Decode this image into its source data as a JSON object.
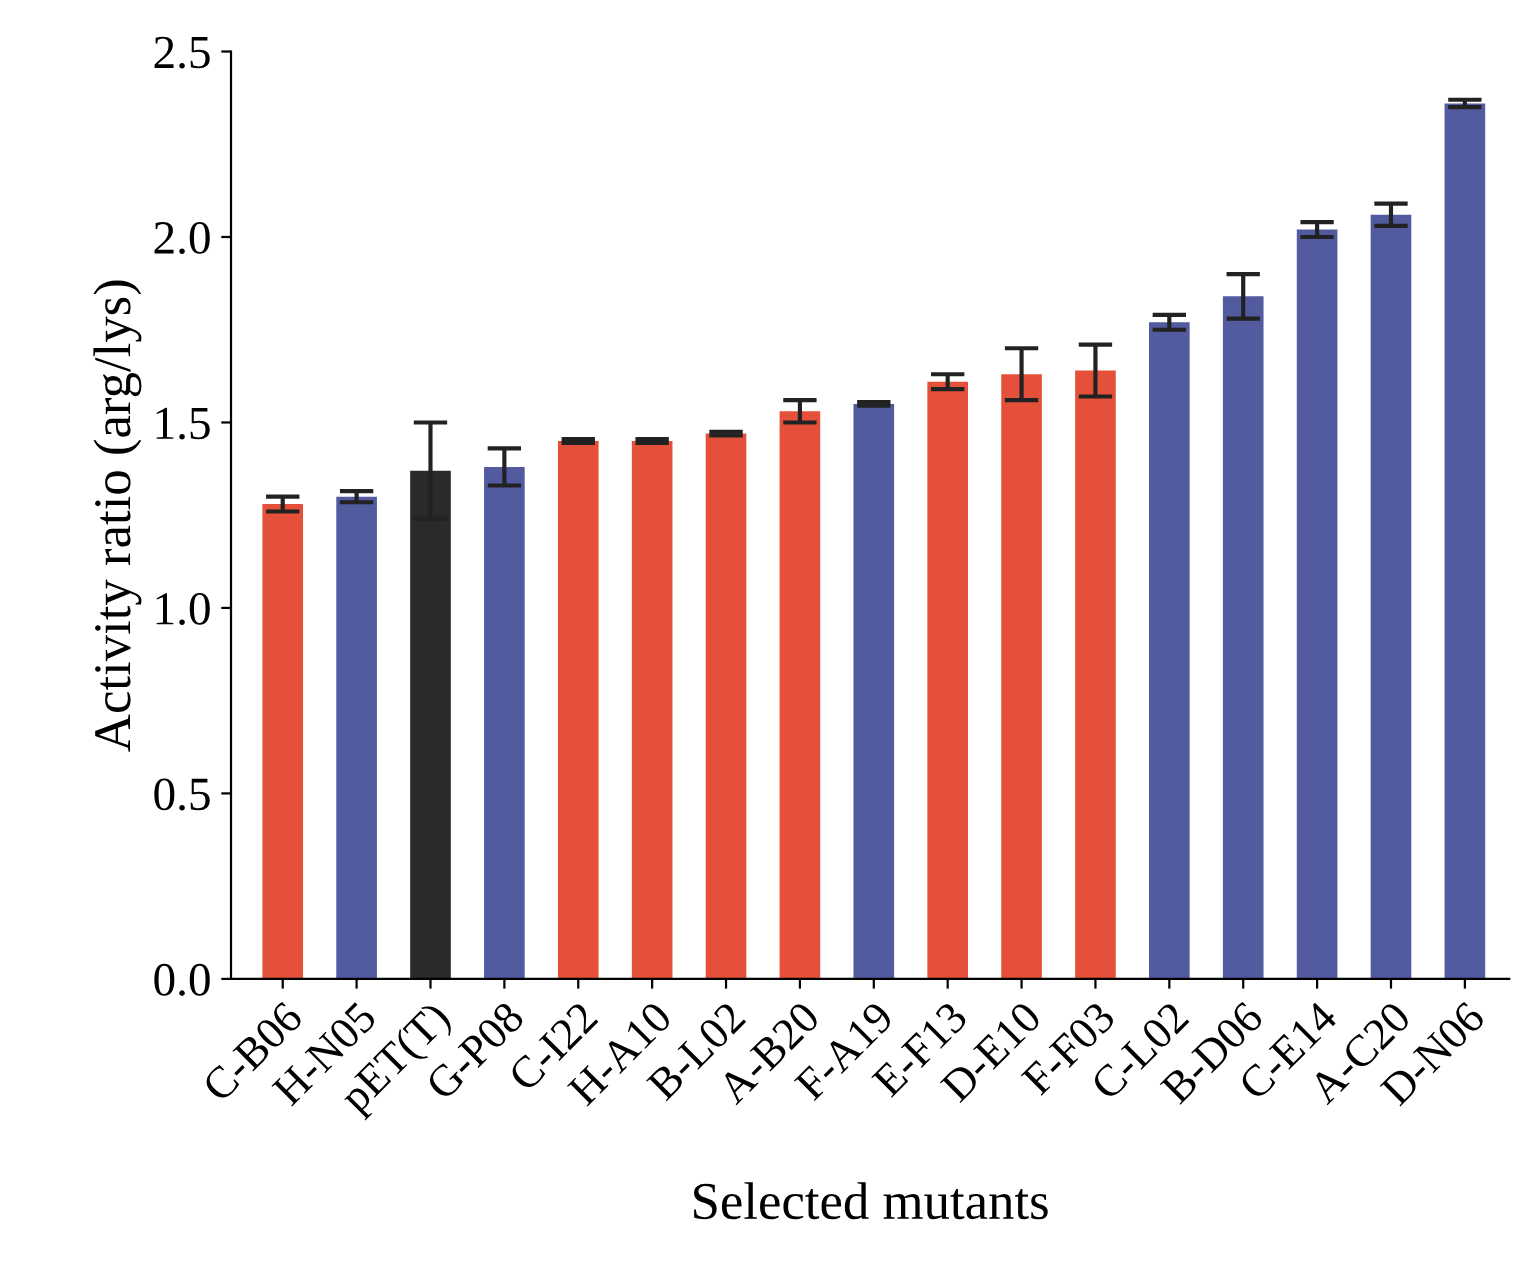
{
  "chart_data": {
    "type": "bar",
    "xlabel": "Selected mutants",
    "ylabel": "Activity ratio (arg/lys)",
    "categories": [
      "C-B06",
      "H-N05",
      "pET(T)",
      "G-P08",
      "C-I22",
      "H-A10",
      "B-L02",
      "A-B20",
      "F-A19",
      "E-F13",
      "D-E10",
      "F-F03",
      "C-L02",
      "B-D06",
      "C-E14",
      "A-C20",
      "D-N06"
    ],
    "values": [
      1.28,
      1.3,
      1.37,
      1.38,
      1.45,
      1.45,
      1.47,
      1.53,
      1.55,
      1.61,
      1.63,
      1.64,
      1.77,
      1.84,
      2.02,
      2.06,
      2.36
    ],
    "errors": [
      0.02,
      0.015,
      0.13,
      0.05,
      0.005,
      0.005,
      0.005,
      0.03,
      0.005,
      0.02,
      0.07,
      0.07,
      0.02,
      0.06,
      0.02,
      0.03,
      0.01
    ],
    "colors": [
      "#e4503a",
      "#525aa0",
      "#2a2a2a",
      "#525aa0",
      "#e4503a",
      "#e4503a",
      "#e4503a",
      "#e4503a",
      "#525aa0",
      "#e4503a",
      "#e4503a",
      "#e4503a",
      "#525aa0",
      "#525aa0",
      "#525aa0",
      "#525aa0",
      "#525aa0"
    ],
    "ylim": [
      0,
      2.5
    ],
    "yticks": [
      {
        "value": 0,
        "label": "0.0"
      },
      {
        "value": 0.5,
        "label": "0.5"
      },
      {
        "value": 1,
        "label": "1.0"
      },
      {
        "value": 1.5,
        "label": "1.5"
      },
      {
        "value": 2,
        "label": "2.0"
      },
      {
        "value": 2.5,
        "label": "2.5"
      }
    ],
    "grid": false
  }
}
